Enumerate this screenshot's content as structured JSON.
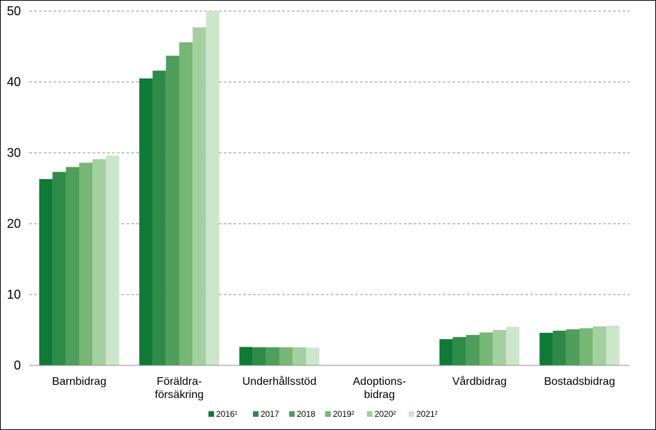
{
  "chart_data": {
    "type": "bar",
    "categories": [
      [
        "Barnbidrag"
      ],
      [
        "Föräldra-",
        "försäkring"
      ],
      [
        "Underhållsstöd"
      ],
      [
        "Adoptions-",
        "bidrag"
      ],
      [
        "Vårdbidrag"
      ],
      [
        "Bostadsbidrag"
      ]
    ],
    "series": [
      {
        "name": "2016¹",
        "color": "#0e7a36",
        "values": [
          26.3,
          40.5,
          2.6,
          0.05,
          3.7,
          4.6
        ]
      },
      {
        "name": "2017",
        "color": "#2e8b47",
        "values": [
          27.3,
          41.6,
          2.55,
          0.05,
          4.0,
          4.9
        ]
      },
      {
        "name": "2018",
        "color": "#4f9e5b",
        "values": [
          28.0,
          43.7,
          2.55,
          0.05,
          4.3,
          5.1
        ]
      },
      {
        "name": "2019²",
        "color": "#76b776",
        "values": [
          28.6,
          45.6,
          2.55,
          0.05,
          4.65,
          5.25
        ]
      },
      {
        "name": "2020²",
        "color": "#a4d0a0",
        "values": [
          29.1,
          47.7,
          2.55,
          0.05,
          5.0,
          5.5
        ]
      },
      {
        "name": "2021²",
        "color": "#cde6cb",
        "values": [
          29.6,
          50.0,
          2.5,
          0.05,
          5.45,
          5.6
        ]
      }
    ],
    "ylim": [
      0,
      50
    ],
    "yticks": [
      "0",
      "10",
      "20",
      "30",
      "40",
      "50"
    ],
    "grid": true,
    "legend": "bottom-center"
  }
}
